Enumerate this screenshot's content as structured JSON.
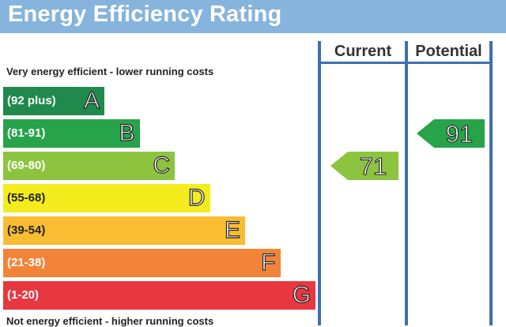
{
  "title": "Energy Efficiency Rating",
  "top_caption": "Very energy efficient - lower running costs",
  "bottom_caption": "Not energy efficient - higher running costs",
  "columns": {
    "current": "Current",
    "potential": "Potential"
  },
  "chart_data": {
    "type": "bar",
    "bands": [
      {
        "letter": "A",
        "range": "(92 plus)",
        "color": "#1f8a4c"
      },
      {
        "letter": "B",
        "range": "(81-91)",
        "color": "#27a34a"
      },
      {
        "letter": "C",
        "range": "(69-80)",
        "color": "#8cc43f"
      },
      {
        "letter": "D",
        "range": "(55-68)",
        "color": "#f4ec1d"
      },
      {
        "letter": "E",
        "range": "(39-54)",
        "color": "#f9bc32"
      },
      {
        "letter": "F",
        "range": "(21-38)",
        "color": "#f2843a"
      },
      {
        "letter": "G",
        "range": "(1-20)",
        "color": "#e8373f"
      }
    ],
    "current": {
      "value": 71,
      "band": "C",
      "color": "#8cc43f"
    },
    "potential": {
      "value": 91,
      "band": "B",
      "color": "#27a34a"
    }
  }
}
